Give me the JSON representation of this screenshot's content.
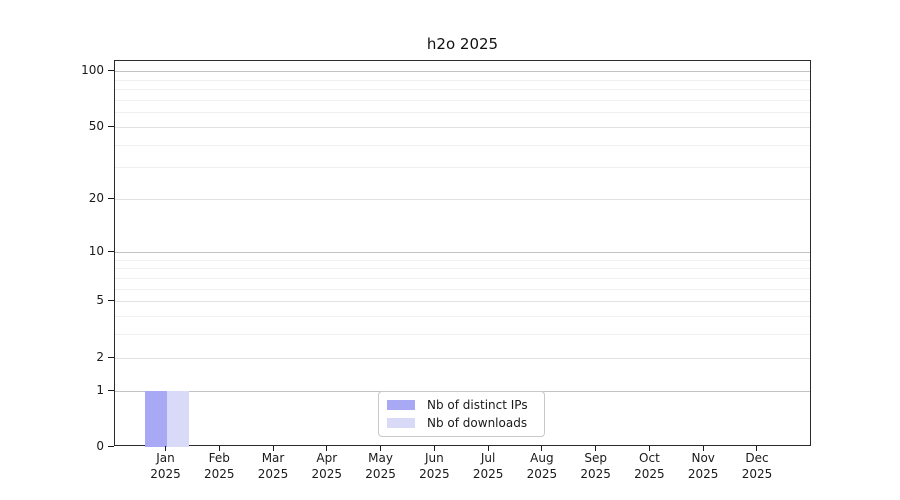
{
  "chart_data": {
    "type": "bar",
    "title": "h2o 2025",
    "categories": [
      "Jan 2025",
      "Feb 2025",
      "Mar 2025",
      "Apr 2025",
      "May 2025",
      "Jun 2025",
      "Jul 2025",
      "Aug 2025",
      "Sep 2025",
      "Oct 2025",
      "Nov 2025",
      "Dec 2025"
    ],
    "series": [
      {
        "name": "Nb of distinct IPs",
        "color": "#a8a8f5",
        "values": [
          1,
          0,
          0,
          0,
          0,
          0,
          0,
          0,
          0,
          0,
          0,
          0
        ]
      },
      {
        "name": "Nb of downloads",
        "color": "#d9d9f8",
        "values": [
          1,
          0,
          0,
          0,
          0,
          0,
          0,
          0,
          0,
          0,
          0,
          0
        ]
      }
    ],
    "xlabel": "",
    "ylabel": "",
    "yscale": "log1p",
    "ylim": [
      0,
      113.6
    ],
    "yticks": [
      0,
      1,
      2,
      5,
      10,
      20,
      50,
      100
    ],
    "minor_yticks": [
      3,
      4,
      6,
      7,
      8,
      9,
      30,
      40,
      60,
      70,
      80,
      90
    ],
    "grid": "horizontal",
    "legend_position": "lower center"
  },
  "colors": {
    "major_grid": "#c3c3c3",
    "mid_grid": "#e2e2e2",
    "minor_grid": "#f0f0f0",
    "spine": "#2b2b2b",
    "legend_border": "#c9c9c9",
    "text": "#1a1a1a",
    "background": "#ffffff"
  }
}
